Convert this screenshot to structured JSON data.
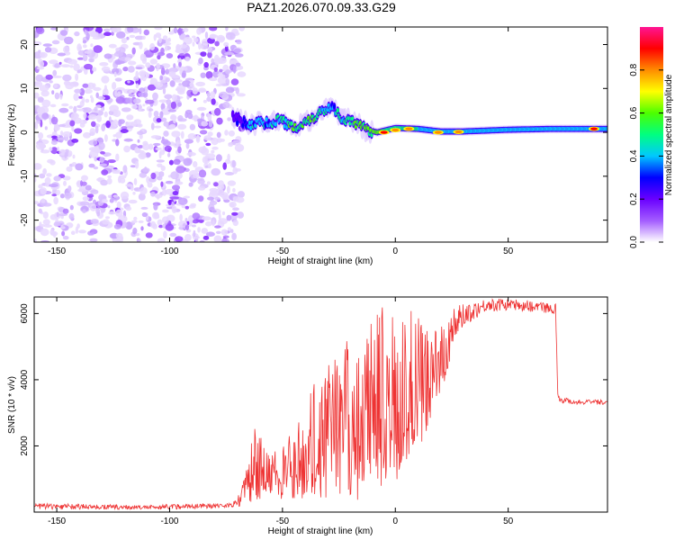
{
  "title": "PAZ1.2026.070.09.33.G29",
  "chart_data": [
    {
      "type": "heatmap",
      "name": "spectrogram",
      "xlabel": "Height of straight line (km)",
      "ylabel": "Frequency (Hz)",
      "xlim": [
        -160,
        94
      ],
      "ylim": [
        -25,
        24
      ],
      "xticks": [
        -150,
        -100,
        -50,
        0,
        50
      ],
      "xtick_labels": [
        "-150",
        "-100",
        "-50",
        "0",
        "50"
      ],
      "yticks": [
        20,
        10,
        0,
        -10,
        -20
      ],
      "ytick_labels": [
        "20",
        "10",
        "0",
        "-10",
        "-20"
      ],
      "noise_region_x": [
        -160,
        -72
      ],
      "ridge": {
        "x": [
          -72,
          -68,
          -64,
          -60,
          -56,
          -52,
          -48,
          -44,
          -40,
          -36,
          -32,
          -28,
          -24,
          -20,
          -16,
          -12,
          -8,
          -4,
          0,
          10,
          20,
          30,
          40,
          50,
          60,
          70,
          80,
          94
        ],
        "freq": [
          3.5,
          2.5,
          1.5,
          2.5,
          2.0,
          3.0,
          2.0,
          1.0,
          2.5,
          3.5,
          5.0,
          6.0,
          3.5,
          2.5,
          1.5,
          0.5,
          0.0,
          0.5,
          1.0,
          0.8,
          0.2,
          0.2,
          0.4,
          0.6,
          0.7,
          0.8,
          0.8,
          0.8
        ],
        "amplitude": [
          0.15,
          0.2,
          0.3,
          0.35,
          0.3,
          0.35,
          0.4,
          0.45,
          0.45,
          0.5,
          0.4,
          0.3,
          0.4,
          0.45,
          0.5,
          0.5,
          0.6,
          0.5,
          0.45,
          0.45,
          0.4,
          0.4,
          0.4,
          0.4,
          0.4,
          0.4,
          0.4,
          0.4
        ],
        "hotspots": [
          [
            -5,
            0,
            0.9
          ],
          [
            0,
            0.5,
            0.75
          ],
          [
            6,
            0.8,
            0.8
          ],
          [
            19,
            0,
            0.75
          ],
          [
            28,
            0.1,
            0.75
          ],
          [
            88,
            0.8,
            0.85
          ]
        ]
      },
      "colorbar": {
        "label": "Normalized spectral amplitude",
        "range": [
          0,
          1
        ],
        "ticks": [
          0.0,
          0.2,
          0.4,
          0.6,
          0.8
        ],
        "tick_labels": [
          "0.0",
          "0.2",
          "0.4",
          "0.6",
          "0.8"
        ],
        "colors": [
          "#ffffff",
          "#a35cff",
          "#6a00ff",
          "#0000ff",
          "#00c8ff",
          "#00ff80",
          "#4cff00",
          "#ffff00",
          "#ff8c00",
          "#ff0000",
          "#ff1493"
        ]
      }
    },
    {
      "type": "line",
      "name": "snr",
      "xlabel": "Height of straight line (km)",
      "ylabel": "SNR (10 * v/v)",
      "xlim": [
        -160,
        94
      ],
      "ylim": [
        0,
        6500
      ],
      "xticks": [
        -150,
        -100,
        -50,
        0,
        50
      ],
      "xtick_labels": [
        "-150",
        "-100",
        "-50",
        "0",
        "50"
      ],
      "yticks": [
        2000,
        4000,
        6000
      ],
      "ytick_labels": [
        "2000",
        "4000",
        "6000"
      ],
      "color": "#ee3333",
      "envelope": {
        "x": [
          -160,
          -110,
          -100,
          -80,
          -74,
          -70,
          -66,
          -62,
          -58,
          -54,
          -50,
          -46,
          -42,
          -38,
          -34,
          -30,
          -26,
          -22,
          -18,
          -14,
          -10,
          -6,
          -2,
          2,
          6,
          10,
          14,
          18,
          22,
          26,
          30,
          40,
          50,
          60,
          71,
          72,
          73,
          80,
          94
        ],
        "low": [
          80,
          80,
          80,
          120,
          130,
          150,
          250,
          350,
          400,
          400,
          350,
          400,
          400,
          400,
          300,
          300,
          350,
          350,
          400,
          300,
          700,
          800,
          900,
          1000,
          1400,
          1800,
          2300,
          3300,
          4000,
          5000,
          5600,
          6050,
          6100,
          6050,
          6000,
          3500,
          3300,
          3250,
          3250
        ],
        "high": [
          280,
          200,
          250,
          270,
          280,
          400,
          1300,
          2700,
          2000,
          1900,
          2600,
          2500,
          2800,
          3500,
          4300,
          4500,
          4800,
          5200,
          5200,
          5200,
          5900,
          6200,
          6000,
          6000,
          6400,
          5900,
          5600,
          5700,
          6000,
          6200,
          6300,
          6450,
          6450,
          6400,
          6300,
          3600,
          3500,
          3400,
          3400
        ]
      }
    }
  ]
}
